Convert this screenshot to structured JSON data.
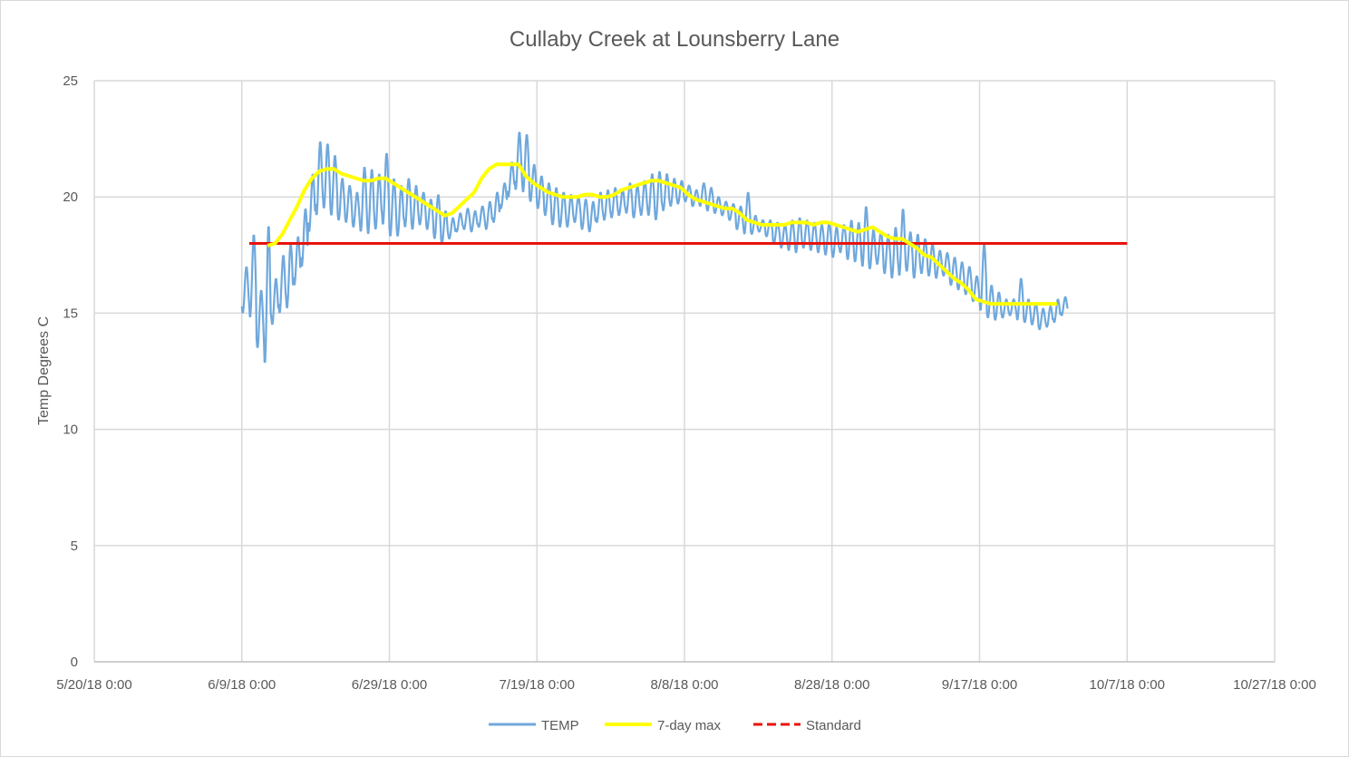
{
  "chart_data": {
    "type": "line",
    "title": "Cullaby Creek at Lounsberry Lane",
    "xlabel": "",
    "ylabel": "Temp Degrees C",
    "xlim": [
      "2018-05-20",
      "2018-10-27"
    ],
    "ylim": [
      0,
      25
    ],
    "x_ticks": [
      "5/20/18 0:00",
      "6/9/18 0:00",
      "6/29/18 0:00",
      "7/19/18 0:00",
      "8/8/18 0:00",
      "8/28/18 0:00",
      "9/17/18 0:00",
      "10/7/18 0:00",
      "10/27/18 0:00"
    ],
    "y_ticks": [
      "0",
      "5",
      "10",
      "15",
      "20",
      "25"
    ],
    "grid": true,
    "legend_position": "bottom",
    "colors": {
      "TEMP": "#6fa8dc",
      "7-day max": "#ffff00",
      "Standard": "#e8130c",
      "grid": "#d9d9d9",
      "axis": "#bfbfbf",
      "text": "#595959"
    },
    "series": [
      {
        "name": "TEMP",
        "style": "solid",
        "description_points": "daily min/max envelope; diurnal oscillation drawn between min and max",
        "x": [
          "2018-06-09",
          "2018-06-10",
          "2018-06-11",
          "2018-06-12",
          "2018-06-13",
          "2018-06-14",
          "2018-06-15",
          "2018-06-16",
          "2018-06-17",
          "2018-06-18",
          "2018-06-19",
          "2018-06-20",
          "2018-06-21",
          "2018-06-22",
          "2018-06-23",
          "2018-06-24",
          "2018-06-25",
          "2018-06-26",
          "2018-06-27",
          "2018-06-28",
          "2018-06-29",
          "2018-06-30",
          "2018-07-01",
          "2018-07-02",
          "2018-07-03",
          "2018-07-04",
          "2018-07-05",
          "2018-07-06",
          "2018-07-07",
          "2018-07-08",
          "2018-07-09",
          "2018-07-10",
          "2018-07-11",
          "2018-07-12",
          "2018-07-13",
          "2018-07-14",
          "2018-07-15",
          "2018-07-16",
          "2018-07-17",
          "2018-07-18",
          "2018-07-19",
          "2018-07-20",
          "2018-07-21",
          "2018-07-22",
          "2018-07-23",
          "2018-07-24",
          "2018-07-25",
          "2018-07-26",
          "2018-07-27",
          "2018-07-28",
          "2018-07-29",
          "2018-07-30",
          "2018-07-31",
          "2018-08-01",
          "2018-08-02",
          "2018-08-03",
          "2018-08-04",
          "2018-08-05",
          "2018-08-06",
          "2018-08-07",
          "2018-08-08",
          "2018-08-09",
          "2018-08-10",
          "2018-08-11",
          "2018-08-12",
          "2018-08-13",
          "2018-08-14",
          "2018-08-15",
          "2018-08-16",
          "2018-08-17",
          "2018-08-18",
          "2018-08-19",
          "2018-08-20",
          "2018-08-21",
          "2018-08-22",
          "2018-08-23",
          "2018-08-24",
          "2018-08-25",
          "2018-08-26",
          "2018-08-27",
          "2018-08-28",
          "2018-08-29",
          "2018-08-30",
          "2018-08-31",
          "2018-09-01",
          "2018-09-02",
          "2018-09-03",
          "2018-09-04",
          "2018-09-05",
          "2018-09-06",
          "2018-09-07",
          "2018-09-08",
          "2018-09-09",
          "2018-09-10",
          "2018-09-11",
          "2018-09-12",
          "2018-09-13",
          "2018-09-14",
          "2018-09-15",
          "2018-09-16",
          "2018-09-17",
          "2018-09-18",
          "2018-09-19",
          "2018-09-20",
          "2018-09-21",
          "2018-09-22",
          "2018-09-23",
          "2018-09-24",
          "2018-09-25",
          "2018-09-26",
          "2018-09-27",
          "2018-09-28"
        ],
        "min": [
          15.0,
          14.8,
          13.5,
          12.8,
          14.5,
          15.0,
          15.2,
          16.2,
          17.0,
          18.5,
          19.2,
          19.5,
          19.2,
          19.0,
          18.9,
          18.7,
          18.5,
          18.4,
          18.6,
          18.8,
          18.3,
          18.3,
          18.7,
          18.6,
          18.8,
          18.6,
          18.2,
          18.0,
          18.2,
          18.5,
          18.6,
          18.5,
          18.7,
          18.6,
          18.9,
          19.5,
          20.0,
          20.3,
          20.2,
          19.8,
          19.5,
          19.2,
          18.8,
          18.7,
          18.7,
          18.9,
          18.6,
          18.5,
          18.9,
          19.0,
          19.1,
          19.2,
          19.3,
          19.1,
          19.2,
          19.2,
          19.0,
          19.4,
          19.6,
          19.7,
          19.8,
          19.6,
          19.6,
          19.4,
          19.3,
          19.2,
          19.0,
          18.6,
          18.4,
          18.4,
          18.5,
          18.3,
          18.0,
          17.8,
          17.7,
          17.6,
          17.8,
          17.7,
          17.6,
          17.5,
          17.4,
          17.6,
          17.3,
          17.2,
          17.0,
          16.9,
          17.1,
          16.7,
          16.5,
          16.6,
          16.8,
          16.5,
          16.7,
          16.6,
          16.5,
          16.6,
          16.2,
          16.0,
          15.8,
          15.5,
          15.1,
          14.8,
          14.7,
          14.8,
          14.9,
          14.7,
          14.6,
          14.5,
          14.3,
          14.4,
          14.6,
          14.9
        ],
        "max": [
          17.0,
          18.4,
          16.0,
          18.8,
          16.5,
          17.5,
          18.0,
          18.3,
          19.5,
          21.0,
          22.4,
          22.3,
          21.8,
          20.8,
          20.5,
          20.2,
          21.3,
          21.2,
          21.0,
          21.9,
          20.8,
          20.5,
          20.8,
          20.5,
          20.2,
          19.9,
          20.1,
          19.4,
          19.1,
          19.3,
          19.5,
          19.4,
          19.6,
          19.8,
          20.2,
          20.6,
          21.5,
          22.8,
          22.7,
          21.4,
          20.9,
          20.6,
          20.4,
          20.2,
          20.1,
          20.0,
          19.9,
          19.8,
          20.2,
          20.3,
          20.4,
          20.3,
          20.6,
          20.5,
          20.7,
          21.0,
          21.1,
          21.0,
          20.8,
          20.7,
          20.5,
          20.3,
          20.6,
          20.4,
          20.0,
          19.8,
          19.7,
          19.6,
          20.2,
          19.2,
          19.0,
          19.0,
          18.9,
          18.8,
          19.0,
          19.1,
          19.0,
          18.9,
          18.8,
          18.9,
          18.7,
          18.8,
          19.0,
          18.9,
          19.6,
          18.6,
          18.5,
          18.4,
          18.7,
          19.5,
          18.5,
          18.4,
          18.2,
          18.0,
          17.7,
          17.6,
          17.4,
          17.2,
          17.0,
          16.6,
          18.0,
          16.2,
          15.9,
          15.6,
          15.6,
          16.5,
          15.6,
          15.4,
          15.2,
          15.3,
          15.6,
          15.7
        ]
      },
      {
        "name": "7-day max",
        "style": "solid",
        "x": [
          "2018-06-12",
          "2018-06-13",
          "2018-06-14",
          "2018-06-15",
          "2018-06-16",
          "2018-06-17",
          "2018-06-18",
          "2018-06-19",
          "2018-06-20",
          "2018-06-21",
          "2018-06-22",
          "2018-06-23",
          "2018-06-24",
          "2018-06-25",
          "2018-06-26",
          "2018-06-27",
          "2018-06-28",
          "2018-06-29",
          "2018-06-30",
          "2018-07-01",
          "2018-07-02",
          "2018-07-03",
          "2018-07-04",
          "2018-07-05",
          "2018-07-06",
          "2018-07-07",
          "2018-07-08",
          "2018-07-09",
          "2018-07-10",
          "2018-07-11",
          "2018-07-12",
          "2018-07-13",
          "2018-07-14",
          "2018-07-15",
          "2018-07-16",
          "2018-07-17",
          "2018-07-18",
          "2018-07-19",
          "2018-07-20",
          "2018-07-21",
          "2018-07-22",
          "2018-07-23",
          "2018-07-24",
          "2018-07-25",
          "2018-07-26",
          "2018-07-27",
          "2018-07-28",
          "2018-07-29",
          "2018-07-30",
          "2018-07-31",
          "2018-08-01",
          "2018-08-02",
          "2018-08-03",
          "2018-08-04",
          "2018-08-05",
          "2018-08-06",
          "2018-08-07",
          "2018-08-08",
          "2018-08-09",
          "2018-08-10",
          "2018-08-11",
          "2018-08-12",
          "2018-08-13",
          "2018-08-14",
          "2018-08-15",
          "2018-08-16",
          "2018-08-17",
          "2018-08-18",
          "2018-08-19",
          "2018-08-20",
          "2018-08-21",
          "2018-08-22",
          "2018-08-23",
          "2018-08-24",
          "2018-08-25",
          "2018-08-26",
          "2018-08-27",
          "2018-08-28",
          "2018-08-29",
          "2018-08-30",
          "2018-08-31",
          "2018-09-01",
          "2018-09-02",
          "2018-09-03",
          "2018-09-04",
          "2018-09-05",
          "2018-09-06",
          "2018-09-07",
          "2018-09-08",
          "2018-09-09",
          "2018-09-10",
          "2018-09-11",
          "2018-09-12",
          "2018-09-13",
          "2018-09-14",
          "2018-09-15",
          "2018-09-16",
          "2018-09-17",
          "2018-09-18",
          "2018-09-19",
          "2018-09-20",
          "2018-09-21",
          "2018-09-22",
          "2018-09-23",
          "2018-09-24",
          "2018-09-25",
          "2018-09-26",
          "2018-09-27"
        ],
        "values": [
          17.9,
          18.0,
          18.4,
          19.0,
          19.6,
          20.3,
          20.8,
          21.1,
          21.2,
          21.2,
          21.0,
          20.9,
          20.8,
          20.7,
          20.7,
          20.8,
          20.8,
          20.6,
          20.4,
          20.2,
          20.0,
          19.8,
          19.6,
          19.4,
          19.2,
          19.3,
          19.6,
          19.9,
          20.2,
          20.8,
          21.2,
          21.4,
          21.4,
          21.4,
          21.4,
          20.9,
          20.6,
          20.4,
          20.2,
          20.1,
          20.0,
          20.0,
          20.0,
          20.1,
          20.1,
          20.0,
          20.0,
          20.1,
          20.3,
          20.4,
          20.5,
          20.6,
          20.7,
          20.7,
          20.6,
          20.5,
          20.4,
          20.1,
          19.9,
          19.8,
          19.7,
          19.6,
          19.5,
          19.5,
          19.3,
          19.0,
          18.9,
          18.8,
          18.8,
          18.8,
          18.8,
          18.9,
          18.9,
          18.9,
          18.8,
          18.9,
          18.9,
          18.8,
          18.7,
          18.6,
          18.5,
          18.6,
          18.7,
          18.5,
          18.3,
          18.2,
          18.2,
          18.0,
          17.8,
          17.5,
          17.4,
          17.1,
          16.8,
          16.5,
          16.3,
          16.0,
          15.6,
          15.5,
          15.4,
          15.4,
          15.4,
          15.4,
          15.4,
          15.4,
          15.4,
          15.4,
          15.4,
          15.4
        ]
      },
      {
        "name": "Standard",
        "style": "dashed",
        "x": [
          "2018-06-10",
          "2018-10-07"
        ],
        "values": [
          18,
          18
        ]
      }
    ]
  }
}
